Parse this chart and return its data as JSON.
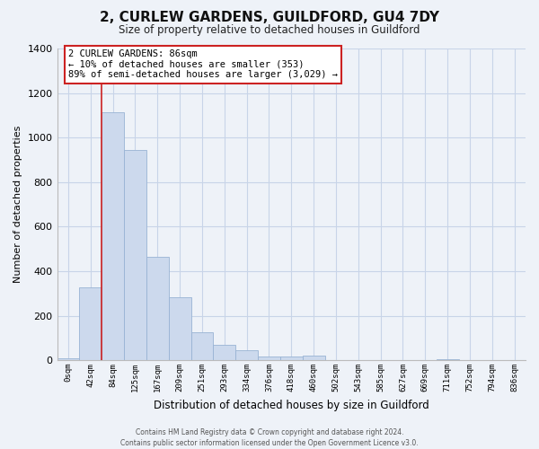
{
  "title": "2, CURLEW GARDENS, GUILDFORD, GU4 7DY",
  "subtitle": "Size of property relative to detached houses in Guildford",
  "xlabel": "Distribution of detached houses by size in Guildford",
  "ylabel": "Number of detached properties",
  "bar_labels": [
    "0sqm",
    "42sqm",
    "84sqm",
    "125sqm",
    "167sqm",
    "209sqm",
    "251sqm",
    "293sqm",
    "334sqm",
    "376sqm",
    "418sqm",
    "460sqm",
    "502sqm",
    "543sqm",
    "585sqm",
    "627sqm",
    "669sqm",
    "711sqm",
    "752sqm",
    "794sqm",
    "836sqm"
  ],
  "bar_heights": [
    10,
    328,
    1113,
    944,
    464,
    283,
    127,
    70,
    45,
    18,
    18,
    22,
    0,
    0,
    0,
    0,
    0,
    5,
    0,
    0,
    0
  ],
  "bar_color": "#ccd9ed",
  "bar_edge_color": "#99b3d4",
  "ylim": [
    0,
    1400
  ],
  "yticks": [
    0,
    200,
    400,
    600,
    800,
    1000,
    1200,
    1400
  ],
  "vline_index": 2,
  "annotation_title": "2 CURLEW GARDENS: 86sqm",
  "annotation_line1": "← 10% of detached houses are smaller (353)",
  "annotation_line2": "89% of semi-detached houses are larger (3,029) →",
  "annotation_box_color": "#ffffff",
  "annotation_box_edge_color": "#cc2222",
  "vline_color": "#cc2222",
  "grid_color": "#c8d4e8",
  "footer_line1": "Contains HM Land Registry data © Crown copyright and database right 2024.",
  "footer_line2": "Contains public sector information licensed under the Open Government Licence v3.0.",
  "bg_color": "#eef2f8"
}
